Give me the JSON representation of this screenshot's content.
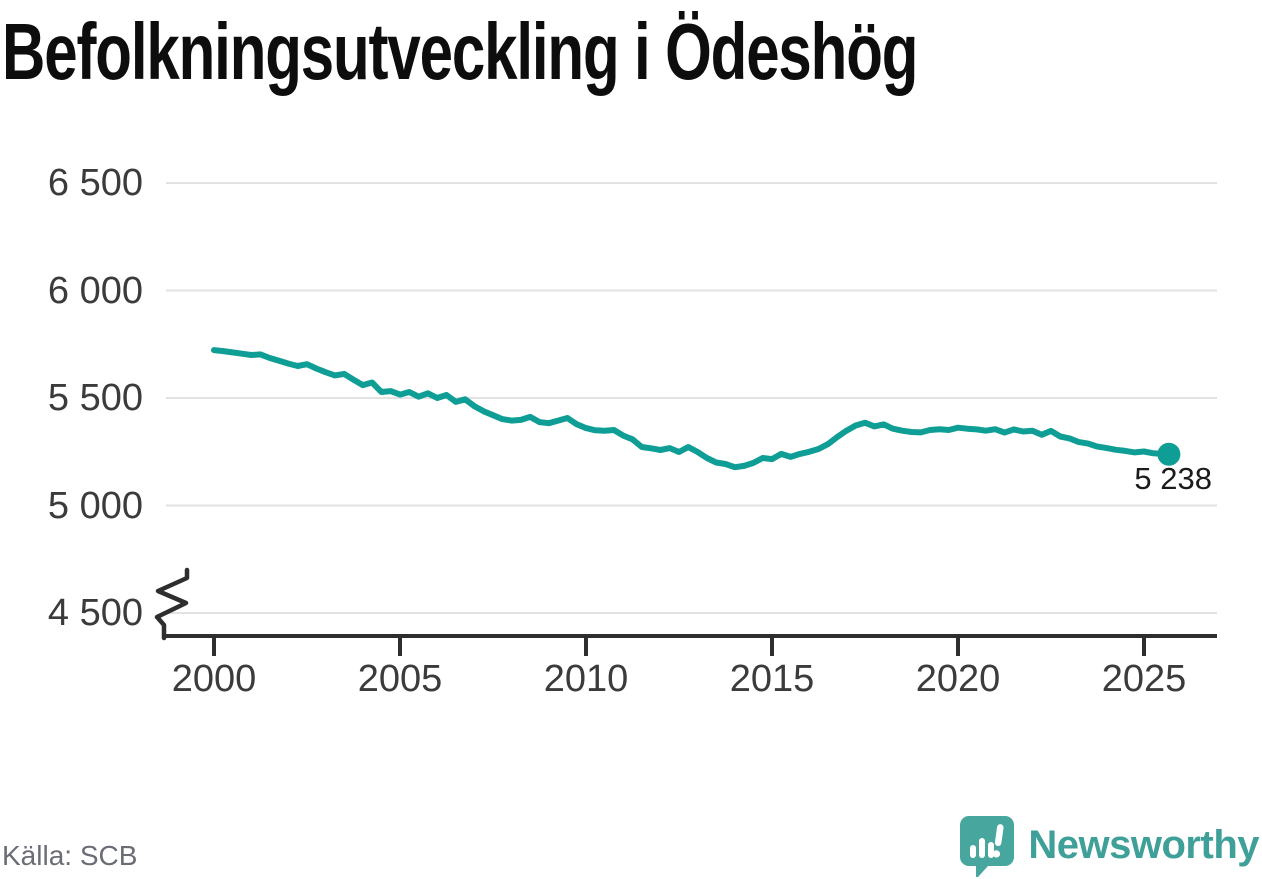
{
  "title": "Befolkningsutveckling i Ödeshög",
  "footer": {
    "source": "Källa: SCB"
  },
  "brand": {
    "name": "Newsworthy"
  },
  "colors": {
    "line": "#0f9e96",
    "grid": "#e2e2e2",
    "axis": "#2e2e2e",
    "tick_label": "#3b3b3b",
    "title": "#0d0d0d",
    "end_label": "#1b1b1b",
    "source": "#6a6d75",
    "brand_text": "#3f9f99",
    "badge": "#47a69e"
  },
  "chart_data": {
    "type": "line",
    "title": "Befolkningsutveckling i Ödeshög",
    "xlabel": "",
    "ylabel": "",
    "ylim": [
      4500,
      6500
    ],
    "axis_break_at_bottom": true,
    "grid": "horizontal",
    "legend": false,
    "yticks": [
      {
        "value": 6500,
        "label": "6 500"
      },
      {
        "value": 6000,
        "label": "6 000"
      },
      {
        "value": 5500,
        "label": "5 500"
      },
      {
        "value": 5000,
        "label": "5 000"
      },
      {
        "value": 4500,
        "label": "4 500"
      }
    ],
    "xticks": [
      {
        "value": 2000,
        "label": "2000"
      },
      {
        "value": 2005,
        "label": "2005"
      },
      {
        "value": 2010,
        "label": "2010"
      },
      {
        "value": 2015,
        "label": "2015"
      },
      {
        "value": 2020,
        "label": "2020"
      },
      {
        "value": 2025,
        "label": "2025"
      }
    ],
    "end_point": {
      "x": 2025.67,
      "y": 5238,
      "label": "5 238"
    },
    "points": [
      [
        2000.0,
        5723
      ],
      [
        2000.25,
        5718
      ],
      [
        2000.5,
        5712
      ],
      [
        2000.75,
        5706
      ],
      [
        2001.0,
        5700
      ],
      [
        2001.25,
        5703
      ],
      [
        2001.5,
        5686
      ],
      [
        2001.75,
        5673
      ],
      [
        2002.0,
        5660
      ],
      [
        2002.25,
        5649
      ],
      [
        2002.5,
        5657
      ],
      [
        2002.75,
        5637
      ],
      [
        2003.0,
        5620
      ],
      [
        2003.25,
        5605
      ],
      [
        2003.5,
        5612
      ],
      [
        2003.75,
        5585
      ],
      [
        2004.0,
        5560
      ],
      [
        2004.25,
        5572
      ],
      [
        2004.5,
        5528
      ],
      [
        2004.75,
        5532
      ],
      [
        2005.0,
        5516
      ],
      [
        2005.25,
        5528
      ],
      [
        2005.5,
        5506
      ],
      [
        2005.75,
        5522
      ],
      [
        2006.0,
        5500
      ],
      [
        2006.25,
        5514
      ],
      [
        2006.5,
        5482
      ],
      [
        2006.75,
        5494
      ],
      [
        2007.0,
        5462
      ],
      [
        2007.25,
        5438
      ],
      [
        2007.5,
        5420
      ],
      [
        2007.75,
        5402
      ],
      [
        2008.0,
        5395
      ],
      [
        2008.25,
        5398
      ],
      [
        2008.5,
        5412
      ],
      [
        2008.75,
        5388
      ],
      [
        2009.0,
        5383
      ],
      [
        2009.25,
        5395
      ],
      [
        2009.5,
        5407
      ],
      [
        2009.75,
        5378
      ],
      [
        2010.0,
        5360
      ],
      [
        2010.25,
        5350
      ],
      [
        2010.5,
        5348
      ],
      [
        2010.75,
        5351
      ],
      [
        2011.0,
        5325
      ],
      [
        2011.25,
        5308
      ],
      [
        2011.5,
        5272
      ],
      [
        2011.75,
        5266
      ],
      [
        2012.0,
        5258
      ],
      [
        2012.25,
        5267
      ],
      [
        2012.5,
        5249
      ],
      [
        2012.75,
        5272
      ],
      [
        2013.0,
        5249
      ],
      [
        2013.25,
        5221
      ],
      [
        2013.5,
        5200
      ],
      [
        2013.75,
        5193
      ],
      [
        2014.0,
        5178
      ],
      [
        2014.25,
        5184
      ],
      [
        2014.5,
        5198
      ],
      [
        2014.75,
        5221
      ],
      [
        2015.0,
        5216
      ],
      [
        2015.25,
        5240
      ],
      [
        2015.5,
        5226
      ],
      [
        2015.75,
        5240
      ],
      [
        2016.0,
        5250
      ],
      [
        2016.25,
        5263
      ],
      [
        2016.5,
        5285
      ],
      [
        2016.75,
        5318
      ],
      [
        2017.0,
        5348
      ],
      [
        2017.25,
        5372
      ],
      [
        2017.5,
        5385
      ],
      [
        2017.75,
        5368
      ],
      [
        2018.0,
        5377
      ],
      [
        2018.25,
        5357
      ],
      [
        2018.5,
        5348
      ],
      [
        2018.75,
        5342
      ],
      [
        2019.0,
        5340
      ],
      [
        2019.25,
        5351
      ],
      [
        2019.5,
        5355
      ],
      [
        2019.75,
        5351
      ],
      [
        2020.0,
        5362
      ],
      [
        2020.25,
        5357
      ],
      [
        2020.5,
        5354
      ],
      [
        2020.75,
        5348
      ],
      [
        2021.0,
        5355
      ],
      [
        2021.25,
        5339
      ],
      [
        2021.5,
        5354
      ],
      [
        2021.75,
        5344
      ],
      [
        2022.0,
        5348
      ],
      [
        2022.25,
        5329
      ],
      [
        2022.5,
        5347
      ],
      [
        2022.75,
        5321
      ],
      [
        2023.0,
        5312
      ],
      [
        2023.25,
        5295
      ],
      [
        2023.5,
        5288
      ],
      [
        2023.75,
        5274
      ],
      [
        2024.0,
        5267
      ],
      [
        2024.25,
        5259
      ],
      [
        2024.5,
        5254
      ],
      [
        2024.75,
        5247
      ],
      [
        2025.0,
        5251
      ],
      [
        2025.25,
        5243
      ],
      [
        2025.5,
        5240
      ],
      [
        2025.67,
        5238
      ]
    ]
  }
}
